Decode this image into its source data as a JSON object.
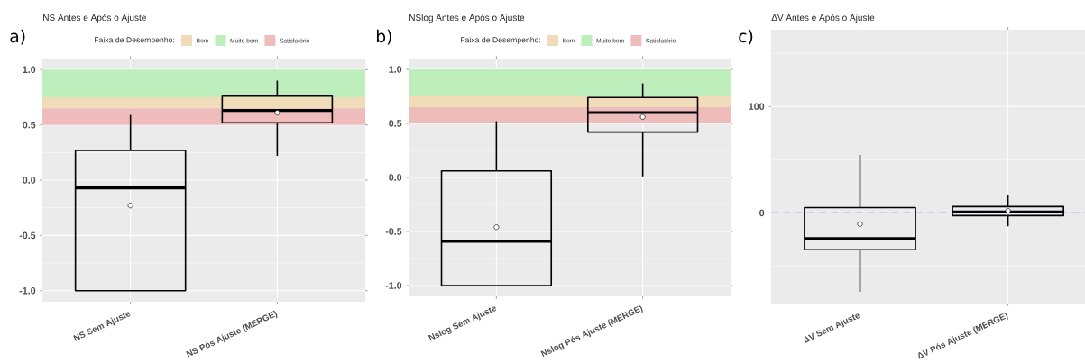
{
  "chart_data": [
    {
      "type": "box",
      "title": "NS Antes e Após o Ajuste",
      "annotations": [
        "a)"
      ],
      "categories": [
        "NS Sem Ajuste",
        "NS Pós Ajuste (MERGE)"
      ],
      "boxes": [
        {
          "low": -1.0,
          "q1": -1.0,
          "median": -0.07,
          "q3": 0.27,
          "high": 0.59,
          "mean": -0.23
        },
        {
          "low": 0.22,
          "q1": 0.52,
          "median": 0.63,
          "q3": 0.76,
          "high": 0.9,
          "mean": 0.61
        }
      ],
      "ylim": [
        -1.1,
        1.1
      ],
      "yticks": [
        {
          "value": -1.0,
          "label": "-1.0"
        },
        {
          "value": -0.5,
          "label": "-0.5"
        },
        {
          "value": 0.0,
          "label": "0.0"
        },
        {
          "value": 0.5,
          "label": "0.5"
        },
        {
          "value": 1.0,
          "label": "1.0"
        }
      ],
      "grid": true,
      "legend": "top",
      "legend_title": "Faixa de Desempenho:",
      "bands": [
        {
          "axis": "y",
          "from": 0.65,
          "to": 0.75,
          "label": "Bom",
          "color": "#f0dcb8"
        },
        {
          "axis": "y",
          "from": 0.75,
          "to": 1.0,
          "label": "Muito bom",
          "color": "#bdeebb"
        },
        {
          "axis": "y",
          "from": 0.5,
          "to": 0.65,
          "label": "Satisfatório",
          "color": "#efbcbc"
        }
      ]
    },
    {
      "type": "box",
      "title": "NSlog Antes e Após o Ajuste",
      "annotations": [
        "b)"
      ],
      "categories": [
        "Nslog Sem Ajuste",
        "Nslog Pós Ajuste (MERGE)"
      ],
      "boxes": [
        {
          "low": -1.0,
          "q1": -1.0,
          "median": -0.59,
          "q3": 0.06,
          "high": 0.52,
          "mean": -0.46
        },
        {
          "low": 0.01,
          "q1": 0.42,
          "median": 0.6,
          "q3": 0.74,
          "high": 0.87,
          "mean": 0.56
        }
      ],
      "ylim": [
        -1.1,
        1.1
      ],
      "yticks": [
        {
          "value": -1.0,
          "label": "-1.0"
        },
        {
          "value": -0.5,
          "label": "-0.5"
        },
        {
          "value": 0.0,
          "label": "0.0"
        },
        {
          "value": 0.5,
          "label": "0.5"
        },
        {
          "value": 1.0,
          "label": "1.0"
        }
      ],
      "grid": true,
      "legend": "top",
      "legend_title": "Faixa de Desempenho:",
      "bands": [
        {
          "axis": "y",
          "from": 0.65,
          "to": 0.75,
          "label": "Bom",
          "color": "#f0dcb8"
        },
        {
          "axis": "y",
          "from": 0.75,
          "to": 1.0,
          "label": "Muito bom",
          "color": "#bdeebb"
        },
        {
          "axis": "y",
          "from": 0.5,
          "to": 0.65,
          "label": "Satisfatório",
          "color": "#efbcbc"
        }
      ]
    },
    {
      "type": "box",
      "title": "ΔV Antes e Após o Ajuste",
      "annotations": [
        "c)"
      ],
      "categories": [
        "ΔV Sem Ajuste",
        "ΔV Pós Ajuste (MERGE)"
      ],
      "boxes": [
        {
          "low": -74,
          "q1": -34.5,
          "median": -24,
          "q3": 5,
          "high": 54.5,
          "mean": -10.5
        },
        {
          "low": -12.5,
          "q1": -2.5,
          "median": 1,
          "q3": 6,
          "high": 17,
          "mean": 2
        }
      ],
      "ylim": [
        -85,
        172
      ],
      "yticks": [
        0,
        100
      ],
      "grid": true,
      "ref_lines": [
        {
          "axis": "y",
          "value": 0,
          "color": "#0000ff",
          "line_style": "dashed"
        }
      ]
    }
  ]
}
